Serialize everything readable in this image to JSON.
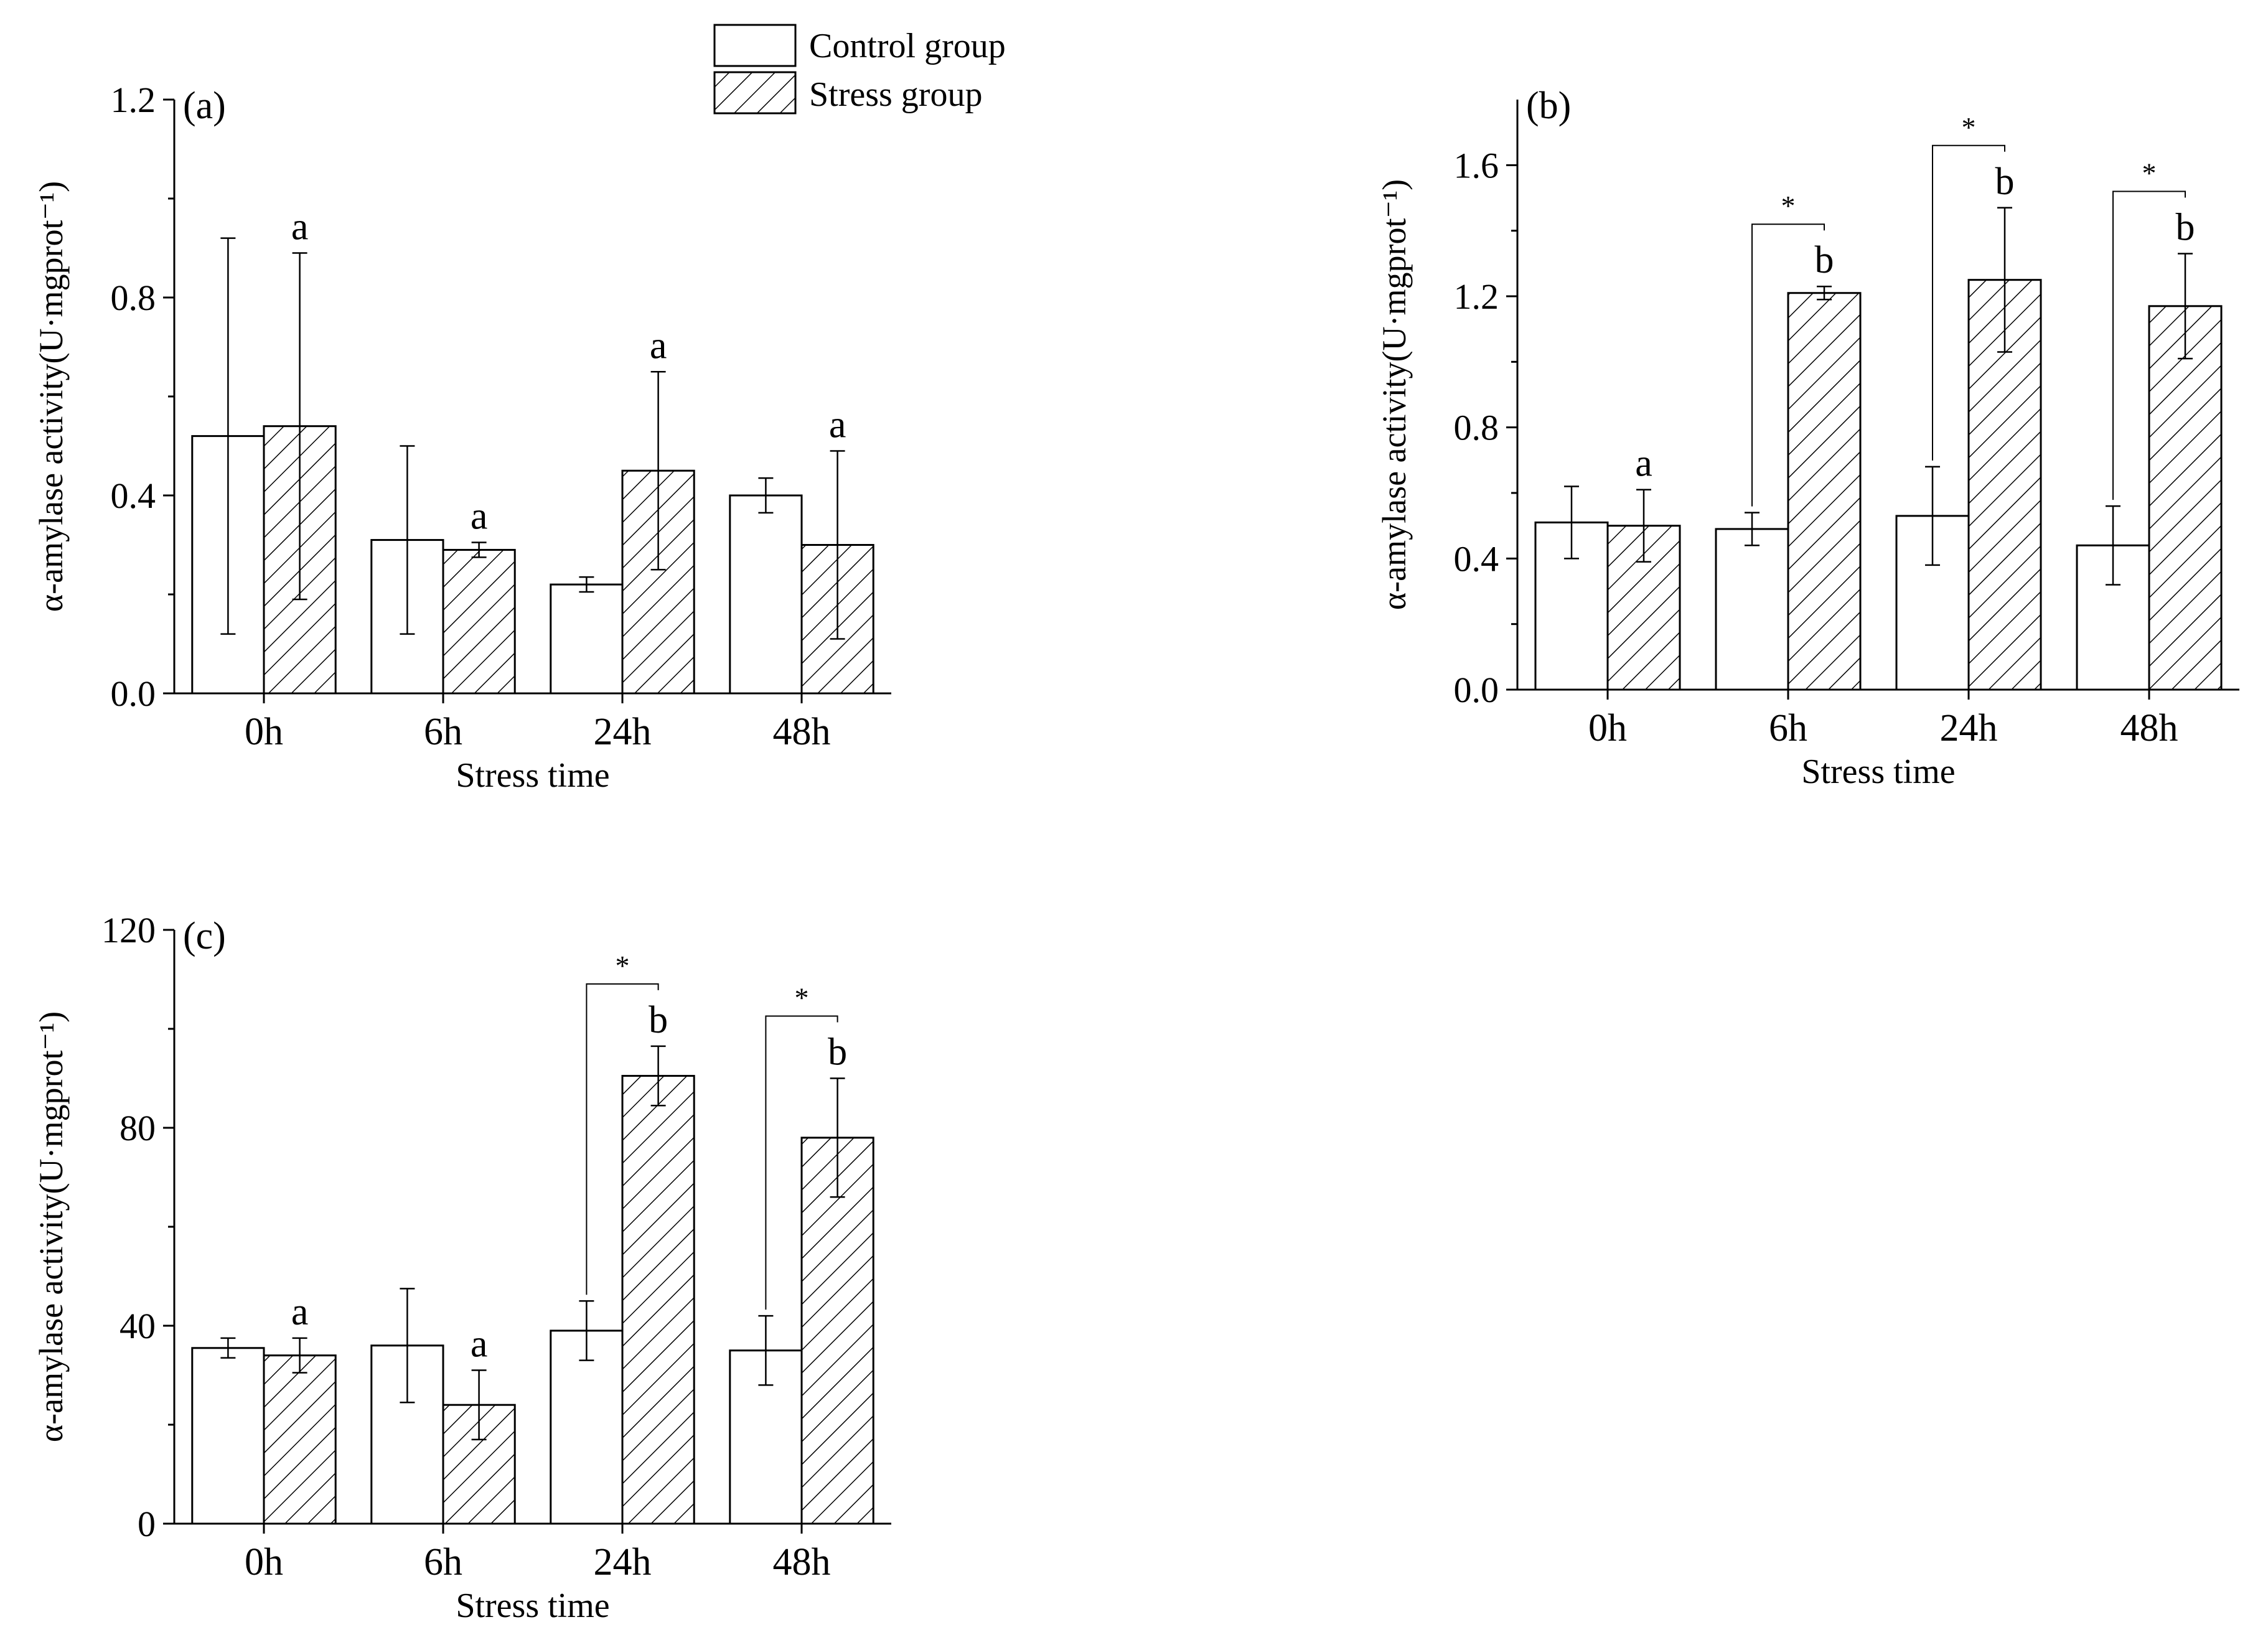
{
  "legend": {
    "position": "top-center",
    "items": [
      {
        "label": "Control group",
        "style": "open"
      },
      {
        "label": "Stress group",
        "style": "hatched"
      }
    ]
  },
  "chart_data": [
    {
      "id": "a",
      "type": "bar",
      "panel_label": "(a)",
      "xlabel": "Stress time",
      "ylabel": "α-amylase activity(U·mgprot⁻¹)",
      "categories": [
        "0h",
        "6h",
        "24h",
        "48h"
      ],
      "ylim": [
        0,
        1.2
      ],
      "yticks": [
        "0.0",
        "0.4",
        "0.8",
        "1.2"
      ],
      "series": [
        {
          "name": "Control group",
          "values": [
            0.52,
            0.31,
            0.22,
            0.4
          ],
          "errors": [
            0.4,
            0.19,
            0.015,
            0.035
          ]
        },
        {
          "name": "Stress group",
          "values": [
            0.54,
            0.29,
            0.45,
            0.3
          ],
          "errors": [
            0.35,
            0.015,
            0.2,
            0.19
          ]
        }
      ],
      "letters": [
        "a",
        "a",
        "a",
        "a"
      ],
      "significance": [
        false,
        false,
        false,
        false
      ]
    },
    {
      "id": "b",
      "type": "bar",
      "panel_label": "(b)",
      "xlabel": "Stress time",
      "ylabel": "α-amylase activity(U·mgprot⁻¹)",
      "categories": [
        "0h",
        "6h",
        "24h",
        "48h"
      ],
      "ylim": [
        0,
        1.8
      ],
      "yticks": [
        "0.0",
        "0.4",
        "0.8",
        "1.2",
        "1.6"
      ],
      "series": [
        {
          "name": "Control group",
          "values": [
            0.51,
            0.49,
            0.53,
            0.44
          ],
          "errors": [
            0.11,
            0.05,
            0.15,
            0.12
          ]
        },
        {
          "name": "Stress group",
          "values": [
            0.5,
            1.21,
            1.25,
            1.17
          ],
          "errors": [
            0.11,
            0.02,
            0.22,
            0.16
          ]
        }
      ],
      "letters": [
        "a",
        "b",
        "b",
        "b"
      ],
      "significance": [
        false,
        true,
        true,
        true
      ],
      "significance_label": "*"
    },
    {
      "id": "c",
      "type": "bar",
      "panel_label": "(c)",
      "xlabel": "Stress time",
      "ylabel": "α-amylase activity(U·mgprot⁻¹)",
      "categories": [
        "0h",
        "6h",
        "24h",
        "48h"
      ],
      "ylim": [
        0,
        120
      ],
      "yticks": [
        "0",
        "40",
        "80",
        "120"
      ],
      "series": [
        {
          "name": "Control group",
          "values": [
            35.5,
            36,
            39,
            35
          ],
          "errors": [
            2,
            11.5,
            6,
            7
          ]
        },
        {
          "name": "Stress group",
          "values": [
            34,
            24,
            90.5,
            78
          ],
          "errors": [
            3.5,
            7,
            6,
            12
          ]
        }
      ],
      "letters": [
        "a",
        "a",
        "b",
        "b"
      ],
      "significance": [
        false,
        false,
        true,
        true
      ],
      "significance_label": "*"
    }
  ]
}
